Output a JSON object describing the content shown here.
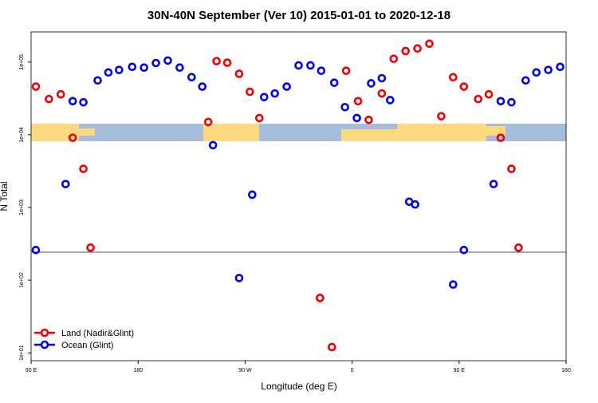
{
  "chart_data": {
    "type": "scatter",
    "title": "30N-40N September (Ver 10)   2015-01-01 to 2020-12-18",
    "x_label": "Longitude (deg E)",
    "y_label": "N Total",
    "log_y": true,
    "xlim": [
      90,
      540
    ],
    "ylim": [
      7.8,
      260000
    ],
    "xticks": [
      {
        "value": 90,
        "label": "90 E"
      },
      {
        "value": 180,
        "label": "180"
      },
      {
        "value": 270,
        "label": "90 W"
      },
      {
        "value": 360,
        "label": "0"
      },
      {
        "value": 450,
        "label": "90 E"
      },
      {
        "value": 540,
        "label": "180"
      }
    ],
    "yticks": [
      {
        "value": 10,
        "label": "1e+01"
      },
      {
        "value": 100,
        "label": "1e+02"
      },
      {
        "value": 1000,
        "label": "1e+03"
      },
      {
        "value": 10000,
        "label": "1e+04"
      },
      {
        "value": 100000,
        "label": "1e+05"
      }
    ],
    "reference_line": 243,
    "legend_position": "bottom-left",
    "series": [
      {
        "name": "Land (Nadir&Glint)",
        "color": "#ee0000",
        "x": [
          94,
          105,
          115,
          125,
          134,
          140,
          239,
          246,
          255,
          265,
          274,
          282,
          333,
          343,
          355,
          365,
          374,
          385,
          395,
          405,
          415,
          425,
          435,
          445,
          454,
          466,
          475,
          485,
          494,
          500
        ],
        "values": [
          46000,
          31000,
          36000,
          9100,
          3400,
          280,
          15000,
          103000,
          98000,
          69000,
          39000,
          17000,
          57,
          12,
          76000,
          29000,
          16000,
          37000,
          111000,
          142000,
          154000,
          179000,
          18000,
          62000,
          46000,
          31000,
          36000,
          9100,
          3400,
          280
        ]
      },
      {
        "name": "Ocean (Glint)",
        "color": "#0000ee",
        "x": [
          94,
          119,
          125,
          134,
          146,
          155,
          164,
          175,
          185,
          195,
          205,
          215,
          225,
          234,
          243,
          265,
          276,
          286,
          295,
          305,
          315,
          325,
          334,
          345,
          354,
          364,
          376,
          385,
          392,
          408,
          413,
          445,
          454,
          479,
          485,
          494,
          506,
          515,
          525,
          535
        ],
        "values": [
          260,
          2100,
          29000,
          28000,
          56000,
          72000,
          78000,
          86000,
          84000,
          97000,
          105000,
          84000,
          62000,
          46000,
          7200,
          107,
          1500,
          33000,
          37000,
          46000,
          90000,
          90000,
          76000,
          52000,
          24000,
          17000,
          51000,
          60000,
          30000,
          1200,
          1100,
          87,
          260,
          2100,
          29000,
          28000,
          56000,
          72000,
          78000,
          86000
        ]
      }
    ]
  }
}
